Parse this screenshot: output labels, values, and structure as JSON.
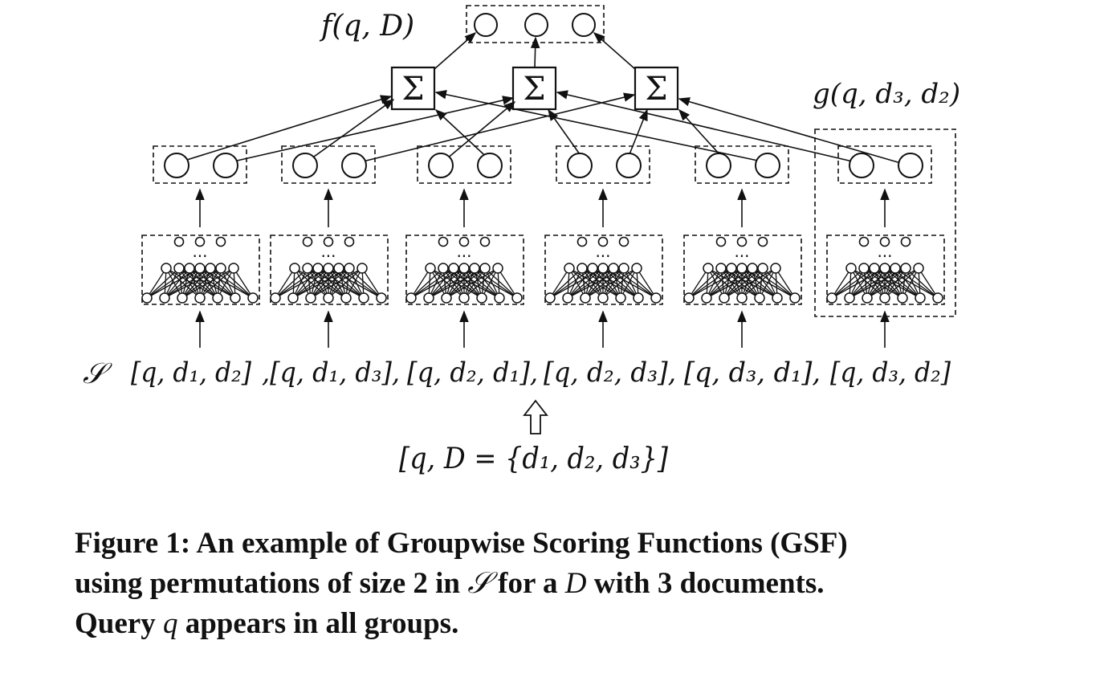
{
  "figure": {
    "top_label": "f(q, D)",
    "side_label": "g(q, d₃, d₂)",
    "set_symbol": "𝒮",
    "sigma": "Σ",
    "dots": "···",
    "permutations": [
      "[q, d₁, d₂]",
      ",[q, d₁, d₃],",
      "[q, d₂, d₁],",
      "[q, d₂, d₃],",
      "[q, d₃, d₁],",
      "[q, d₃, d₂]"
    ],
    "input_label": "[q, D = {d₁, d₂, d₃}]"
  },
  "caption": {
    "line1": "Figure 1: An example of Groupwise Scoring Functions (GSF)",
    "line2_a": "using permutations of size 2 in ",
    "line2_s": "𝒮",
    "line2_b": " for a ",
    "line2_d": "D",
    "line2_c": " with 3 documents.",
    "line3_a": "Query ",
    "line3_q": "q",
    "line3_b": " appears in all groups."
  },
  "colors": {
    "ink": "#111111",
    "background": "#ffffff"
  }
}
